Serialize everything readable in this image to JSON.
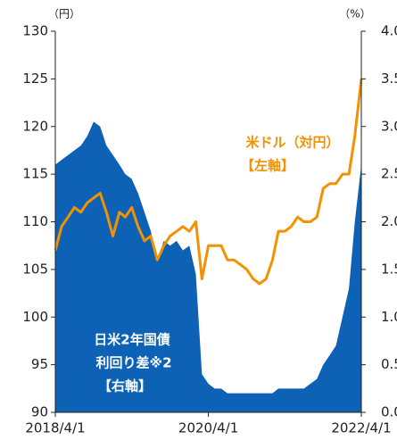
{
  "chart_data": {
    "type": "line",
    "x": [
      "2018/4/1",
      "2018/5/1",
      "2018/6/1",
      "2018/7/1",
      "2018/8/1",
      "2018/9/1",
      "2018/10/1",
      "2018/11/1",
      "2018/12/1",
      "2019/1/1",
      "2019/2/1",
      "2019/3/1",
      "2019/4/1",
      "2019/5/1",
      "2019/6/1",
      "2019/7/1",
      "2019/8/1",
      "2019/9/1",
      "2019/10/1",
      "2019/11/1",
      "2019/12/1",
      "2020/1/1",
      "2020/2/1",
      "2020/3/1",
      "2020/4/1",
      "2020/5/1",
      "2020/6/1",
      "2020/7/1",
      "2020/8/1",
      "2020/9/1",
      "2020/10/1",
      "2020/11/1",
      "2020/12/1",
      "2021/1/1",
      "2021/2/1",
      "2021/3/1",
      "2021/4/1",
      "2021/5/1",
      "2021/6/1",
      "2021/7/1",
      "2021/8/1",
      "2021/9/1",
      "2021/10/1",
      "2021/11/1",
      "2021/12/1",
      "2022/1/1",
      "2022/2/1",
      "2022/3/1",
      "2022/4/1"
    ],
    "series": [
      {
        "name": "日米2年国債",
        "color": "#0d62b5",
        "axis": "y2",
        "kind": "area",
        "values": [
          2.6,
          2.65,
          2.7,
          2.75,
          2.8,
          2.9,
          3.05,
          3.0,
          2.8,
          2.7,
          2.6,
          2.5,
          2.45,
          2.3,
          2.1,
          1.9,
          1.6,
          1.8,
          1.75,
          1.8,
          1.7,
          1.75,
          1.45,
          0.4,
          0.3,
          0.25,
          0.25,
          0.2,
          0.2,
          0.2,
          0.2,
          0.2,
          0.2,
          0.2,
          0.2,
          0.25,
          0.25,
          0.25,
          0.25,
          0.25,
          0.3,
          0.35,
          0.5,
          0.6,
          0.7,
          1.0,
          1.3,
          2.0,
          2.6
        ]
      },
      {
        "name": "米ドル（対円）",
        "color": "#f39200",
        "kind": "line",
        "values": [
          107,
          109.5,
          110.5,
          111.5,
          111,
          112,
          112.5,
          113,
          111,
          108.5,
          111,
          110.5,
          111.5,
          109.5,
          108,
          108.5,
          106,
          107.5,
          108.5,
          109,
          109.5,
          109,
          110,
          104,
          107.5,
          107.5,
          107.5,
          106,
          106,
          105.5,
          105,
          104,
          103.5,
          104,
          106,
          109,
          109,
          109.5,
          110.5,
          110,
          110,
          110.5,
          113.5,
          114,
          114,
          115,
          115,
          119,
          125
        ]
      }
    ],
    "annotations": [
      "【左軸】",
      "利回り差※2",
      "【右軸】"
    ],
    "y_unit": "（円）",
    "y2_unit": "（%）",
    "xlim": [
      "2018/4/1",
      "2022/4/1"
    ],
    "xticks": [
      "2018/4/1",
      "2020/4/1",
      "2022/4/1"
    ],
    "ylim": [
      90,
      130
    ],
    "yticks": [
      90,
      95,
      100,
      105,
      110,
      115,
      120,
      125,
      130
    ],
    "y2lim": [
      0,
      4
    ],
    "y2ticks": [
      {
        "value": 0,
        "label": "0.0"
      },
      {
        "value": 0.5,
        "label": "0.5"
      },
      {
        "value": 1,
        "label": "1.0"
      },
      {
        "value": 1.5,
        "label": "1.5"
      },
      {
        "value": 2,
        "label": "2.0"
      },
      {
        "value": 2.5,
        "label": "2.5"
      },
      {
        "value": 3,
        "label": "3.0"
      },
      {
        "value": 3.5,
        "label": "3.5"
      },
      {
        "value": 4,
        "label": "4.0"
      }
    ]
  }
}
